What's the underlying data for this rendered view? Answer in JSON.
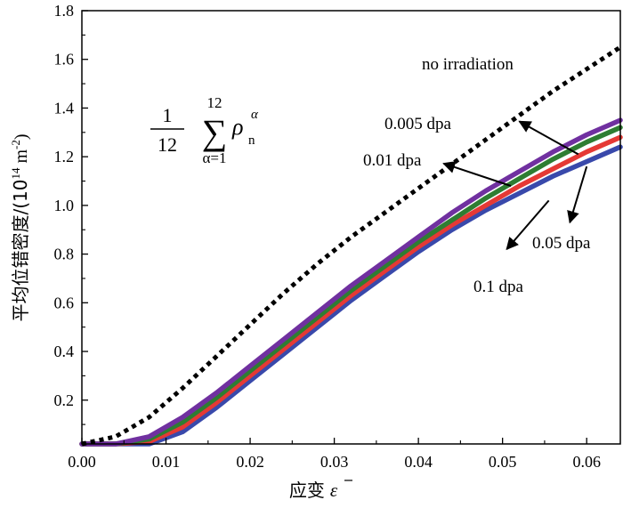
{
  "chart_data": {
    "type": "line",
    "xlabel": "应变",
    "xlabel_symbol": "ε",
    "ylabel": "平均位错密度/(10",
    "ylabel_exp": "14",
    "ylabel_unit": " m",
    "ylabel_unit_exp": "-2",
    "ylabel_close": ")",
    "xlim": [
      0.0,
      0.064
    ],
    "ylim": [
      0.02,
      1.8
    ],
    "xticks": [
      0.0,
      0.01,
      0.02,
      0.03,
      0.04,
      0.05,
      0.06
    ],
    "xtick_labels": [
      "0.00",
      "0.01",
      "0.02",
      "0.03",
      "0.04",
      "0.05",
      "0.06"
    ],
    "yticks": [
      0.2,
      0.4,
      0.6,
      0.8,
      1.0,
      1.2,
      1.4,
      1.6,
      1.8
    ],
    "ytick_labels": [
      "0.2",
      "0.4",
      "0.6",
      "0.8",
      "1.0",
      "1.2",
      "1.4",
      "1.6",
      "1.8"
    ],
    "formula": {
      "frac_num": "1",
      "frac_den": "12",
      "sum_top": "12",
      "sum_sub": "α=1",
      "sum_symbol": "∑",
      "rho": "ρ",
      "rho_sub": "n",
      "rho_sup": "α"
    },
    "x": [
      0.0,
      0.004,
      0.008,
      0.012,
      0.016,
      0.02,
      0.024,
      0.028,
      0.032,
      0.036,
      0.04,
      0.044,
      0.048,
      0.052,
      0.056,
      0.06,
      0.064
    ],
    "series": [
      {
        "name": "no irradiation",
        "color": "#000000",
        "style": "dotted",
        "values": [
          0.02,
          0.05,
          0.13,
          0.25,
          0.38,
          0.51,
          0.64,
          0.76,
          0.87,
          0.97,
          1.07,
          1.17,
          1.27,
          1.37,
          1.47,
          1.56,
          1.65
        ]
      },
      {
        "name": "0.005 dpa",
        "color": "#7030a0",
        "style": "solid",
        "values": [
          0.02,
          0.02,
          0.05,
          0.13,
          0.23,
          0.34,
          0.45,
          0.56,
          0.67,
          0.77,
          0.87,
          0.97,
          1.06,
          1.14,
          1.22,
          1.29,
          1.35
        ]
      },
      {
        "name": "0.01 dpa",
        "color": "#2e7d32",
        "style": "solid",
        "values": [
          0.02,
          0.02,
          0.04,
          0.11,
          0.21,
          0.32,
          0.43,
          0.54,
          0.65,
          0.75,
          0.85,
          0.94,
          1.03,
          1.11,
          1.19,
          1.26,
          1.32
        ]
      },
      {
        "name": "0.05 dpa",
        "color": "#e53935",
        "style": "solid",
        "values": [
          0.02,
          0.02,
          0.03,
          0.09,
          0.19,
          0.3,
          0.41,
          0.52,
          0.63,
          0.73,
          0.83,
          0.92,
          1.0,
          1.08,
          1.15,
          1.22,
          1.28
        ]
      },
      {
        "name": "0.1 dpa",
        "color": "#3949ab",
        "style": "solid",
        "values": [
          0.02,
          0.02,
          0.02,
          0.07,
          0.17,
          0.28,
          0.39,
          0.5,
          0.61,
          0.71,
          0.81,
          0.9,
          0.98,
          1.05,
          1.12,
          1.18,
          1.24
        ]
      }
    ],
    "annotations": [
      {
        "text": "no irradiation"
      },
      {
        "text": "0.005 dpa",
        "arrow_from": [
          0.059,
          1.21
        ],
        "arrow_to": [
          0.052,
          1.345
        ]
      },
      {
        "text": "0.01 dpa",
        "arrow_from": [
          0.051,
          1.08
        ],
        "arrow_to": [
          0.043,
          1.172
        ]
      },
      {
        "text": "0.05 dpa",
        "arrow_from": [
          0.06,
          1.16
        ],
        "arrow_to": [
          0.058,
          0.93
        ]
      },
      {
        "text": "0.1 dpa",
        "arrow_from": [
          0.0555,
          1.02
        ],
        "arrow_to": [
          0.0505,
          0.82
        ]
      }
    ]
  }
}
